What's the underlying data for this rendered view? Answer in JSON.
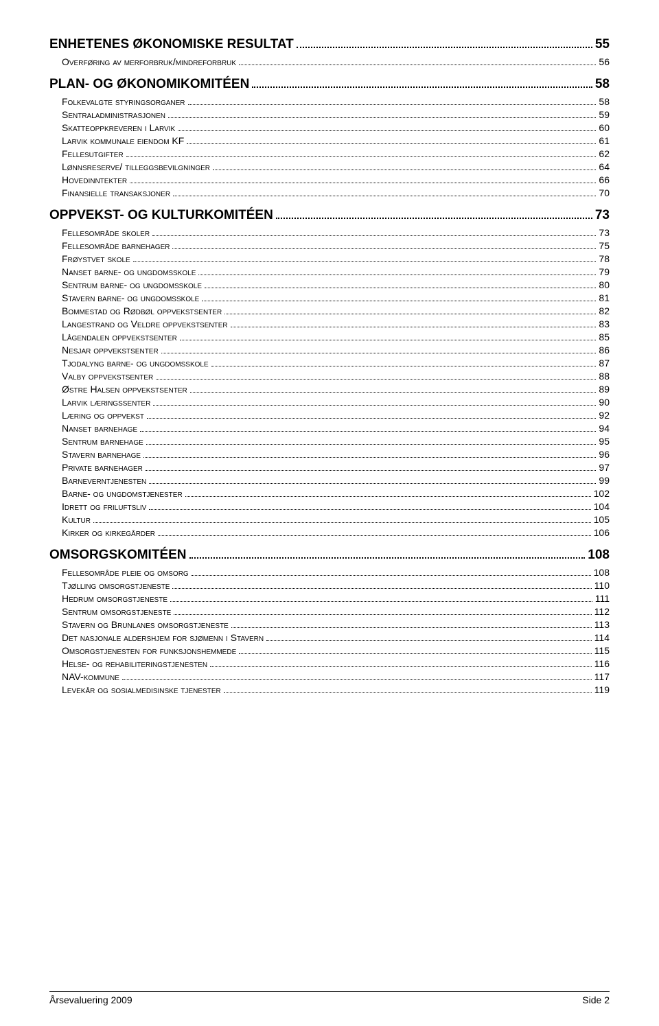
{
  "toc": [
    {
      "label": "ENHETENES ØKONOMISKE RESULTAT",
      "page": "55",
      "level": 1
    },
    {
      "label": "Overføring av merforbruk/mindreforbruk",
      "page": " 56",
      "level": 2
    },
    {
      "label": "PLAN- OG ØKONOMIKOMITÉEN",
      "page": "58",
      "level": 1
    },
    {
      "label": "Folkevalgte styringsorganer",
      "page": " 58",
      "level": 2
    },
    {
      "label": "Sentraladministrasjonen",
      "page": " 59",
      "level": 2
    },
    {
      "label": "Skatteoppkreveren i Larvik",
      "page": " 60",
      "level": 2
    },
    {
      "label": "Larvik kommunale eiendom KF",
      "page": " 61",
      "level": 2
    },
    {
      "label": "Fellesutgifter",
      "page": " 62",
      "level": 2
    },
    {
      "label": "Lønnsreserve/ tilleggsbevilgninger",
      "page": " 64",
      "level": 2
    },
    {
      "label": "Hovedinntekter",
      "page": " 66",
      "level": 2
    },
    {
      "label": "Finansielle transaksjoner",
      "page": " 70",
      "level": 2
    },
    {
      "label": "OPPVEKST- OG KULTURKOMITÉEN",
      "page": "73",
      "level": 1
    },
    {
      "label": "Fellesområde skoler",
      "page": " 73",
      "level": 2
    },
    {
      "label": "Fellesområde barnehager",
      "page": " 75",
      "level": 2
    },
    {
      "label": "Frøystvet skole",
      "page": " 78",
      "level": 2
    },
    {
      "label": "Nanset barne- og ungdomsskole",
      "page": " 79",
      "level": 2
    },
    {
      "label": "Sentrum barne- og ungdomsskole",
      "page": " 80",
      "level": 2
    },
    {
      "label": "Stavern barne- og ungdomsskole",
      "page": " 81",
      "level": 2
    },
    {
      "label": "Bommestad og Rødbøl oppvekstsenter",
      "page": " 82",
      "level": 2
    },
    {
      "label": "Langestrand og Veldre oppvekstsenter",
      "page": " 83",
      "level": 2
    },
    {
      "label": "Lågendalen oppvekstsenter",
      "page": " 85",
      "level": 2
    },
    {
      "label": "Nesjar oppvekstsenter",
      "page": " 86",
      "level": 2
    },
    {
      "label": "Tjodalyng barne- og ungdomsskole",
      "page": " 87",
      "level": 2
    },
    {
      "label": "Valby oppvekstsenter",
      "page": " 88",
      "level": 2
    },
    {
      "label": "Østre Halsen oppvekstsenter",
      "page": " 89",
      "level": 2
    },
    {
      "label": "Larvik læringssenter",
      "page": " 90",
      "level": 2
    },
    {
      "label": "Læring og oppvekst",
      "page": " 92",
      "level": 2
    },
    {
      "label": "Nanset barnehage",
      "page": " 94",
      "level": 2
    },
    {
      "label": "Sentrum barnehage",
      "page": " 95",
      "level": 2
    },
    {
      "label": "Stavern barnehage",
      "page": " 96",
      "level": 2
    },
    {
      "label": "Private barnehager",
      "page": " 97",
      "level": 2
    },
    {
      "label": "Barneverntjenesten",
      "page": " 99",
      "level": 2
    },
    {
      "label": "Barne- og ungdomstjenester",
      "page": " 102",
      "level": 2
    },
    {
      "label": "Idrett og friluftsliv",
      "page": " 104",
      "level": 2
    },
    {
      "label": "Kultur",
      "page": " 105",
      "level": 2
    },
    {
      "label": "Kirker og kirkegårder",
      "page": " 106",
      "level": 2
    },
    {
      "label": "OMSORGSKOMITÉEN",
      "page": "108",
      "level": 1
    },
    {
      "label": "Fellesområde pleie og omsorg",
      "page": " 108",
      "level": 2
    },
    {
      "label": "Tjølling omsorgstjeneste",
      "page": " 110",
      "level": 2
    },
    {
      "label": "Hedrum omsorgstjeneste",
      "page": " 111",
      "level": 2
    },
    {
      "label": "Sentrum omsorgstjeneste",
      "page": " 112",
      "level": 2
    },
    {
      "label": "Stavern og Brunlanes omsorgstjeneste",
      "page": " 113",
      "level": 2
    },
    {
      "label": "Det nasjonale aldershjem for sjømenn i Stavern",
      "page": " 114",
      "level": 2
    },
    {
      "label": "Omsorgstjenesten for funksjonshemmede",
      "page": " 115",
      "level": 2
    },
    {
      "label": "Helse- og rehabiliteringstjenesten",
      "page": " 116",
      "level": 2
    },
    {
      "label": "NAV-kommune",
      "page": " 117",
      "level": 2
    },
    {
      "label": "Levekår og sosialmedisinske tjenester",
      "page": " 119",
      "level": 2
    }
  ],
  "footer": {
    "left": "Årsevaluering 2009",
    "right": "Side 2"
  }
}
